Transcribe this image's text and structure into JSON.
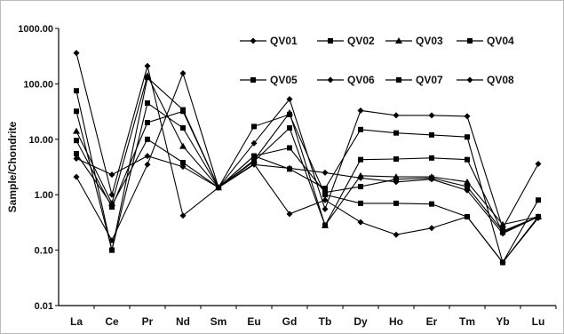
{
  "chart_data": {
    "type": "line",
    "title": "",
    "xlabel": "",
    "ylabel": "Sample/Chondrite",
    "yscale": "log",
    "ylim": [
      0.01,
      1000
    ],
    "yticks": [
      "1000.00",
      "100.00",
      "10.00",
      "1.00",
      "0.10",
      "0.01"
    ],
    "categories": [
      "La",
      "Ce",
      "Pr",
      "Nd",
      "Sm",
      "Eu",
      "Gd",
      "Tb",
      "Dy",
      "Ho",
      "Er",
      "Tm",
      "Yb",
      "Lu"
    ],
    "grid": false,
    "legend_position": "top-right",
    "series": [
      {
        "name": "QV01",
        "marker": "diamond",
        "values": [
          360,
          1.0,
          210,
          0.42,
          1.35,
          8.5,
          53,
          0.55,
          33,
          27,
          27,
          26,
          0.25,
          3.6
        ]
      },
      {
        "name": "QV02",
        "marker": "square",
        "values": [
          75,
          0.1,
          130,
          34,
          1.35,
          5.0,
          2.9,
          1.3,
          15,
          13,
          12,
          11,
          0.06,
          0.4
        ]
      },
      {
        "name": "QV03",
        "marker": "triangle",
        "values": [
          14,
          0.7,
          140,
          7.5,
          1.35,
          4.2,
          30,
          0.28,
          2.2,
          2.1,
          2.1,
          1.7,
          0.29,
          0.4
        ]
      },
      {
        "name": "QV04",
        "marker": "square",
        "values": [
          32,
          0.1,
          45,
          16,
          1.35,
          4.0,
          16,
          0.28,
          4.3,
          4.4,
          4.6,
          4.3,
          0.21,
          0.4
        ]
      },
      {
        "name": "QV05",
        "marker": "square",
        "values": [
          9.5,
          0.6,
          20,
          32,
          1.35,
          17,
          28,
          1.0,
          0.7,
          0.7,
          0.68,
          0.4,
          0.06,
          0.8
        ]
      },
      {
        "name": "QV06",
        "marker": "diamond",
        "values": [
          4.5,
          2.3,
          5.0,
          3.2,
          1.35,
          3.5,
          3.0,
          2.5,
          2.0,
          1.7,
          1.9,
          1.2,
          0.2,
          0.4
        ]
      },
      {
        "name": "QV07",
        "marker": "square",
        "values": [
          5.5,
          0.65,
          10,
          3.8,
          1.35,
          5.0,
          7.0,
          1.1,
          1.4,
          1.9,
          2.0,
          1.4,
          0.22,
          0.4
        ]
      },
      {
        "name": "QV08",
        "marker": "diamond",
        "values": [
          2.1,
          0.15,
          3.5,
          155,
          1.35,
          3.6,
          0.45,
          0.8,
          0.32,
          0.19,
          0.25,
          0.4,
          0.06,
          0.38
        ]
      }
    ]
  }
}
